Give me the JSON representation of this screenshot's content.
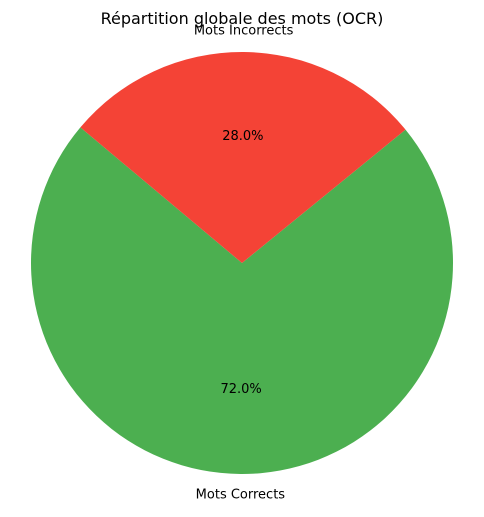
{
  "chart_data": {
    "type": "pie",
    "title": "Répartition globale des mots (OCR)",
    "categories": [
      "Mots Corrects",
      "Mots Incorrects"
    ],
    "values": [
      72.0,
      28.0
    ],
    "percent_labels": [
      "72.0%",
      "28.0%"
    ],
    "colors": [
      "#4caf50",
      "#f44336"
    ],
    "start_angle_deg": 140,
    "direction": "counterclockwise",
    "legend": "none"
  }
}
